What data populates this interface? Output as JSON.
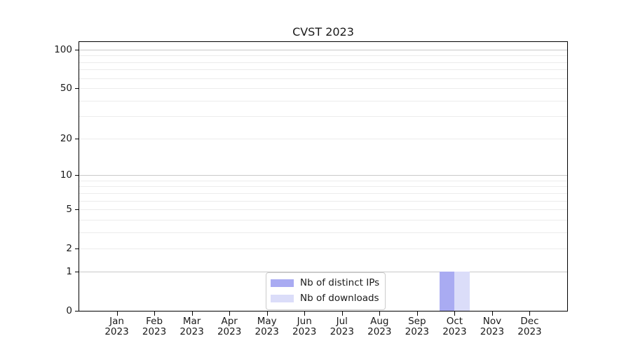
{
  "chart_data": {
    "type": "bar",
    "title": "CVST 2023",
    "xlabel": "",
    "ylabel": "",
    "year": "2023",
    "categories": [
      "Jan",
      "Feb",
      "Mar",
      "Apr",
      "May",
      "Jun",
      "Jul",
      "Aug",
      "Sep",
      "Oct",
      "Nov",
      "Dec"
    ],
    "series": [
      {
        "name": "Nb of distinct IPs",
        "color": "#a9abf2",
        "values": [
          0,
          0,
          0,
          0,
          0,
          0,
          0,
          0,
          0,
          1,
          0,
          0
        ]
      },
      {
        "name": "Nb of downloads",
        "color": "#dbddf9",
        "values": [
          0,
          0,
          0,
          0,
          0,
          0,
          0,
          0,
          0,
          1,
          0,
          0
        ]
      }
    ],
    "y_scale": "log10(1+x)",
    "y_max": 114.5,
    "y_ticks": [
      0,
      1,
      2,
      5,
      10,
      20,
      50,
      100
    ],
    "grid_major": [
      1,
      10,
      100
    ],
    "grid_minor": [
      2,
      3,
      4,
      5,
      6,
      7,
      8,
      9,
      20,
      30,
      40,
      50,
      60,
      70,
      80,
      90
    ],
    "grid_on": true,
    "legend_position": "lower center (inside plot)",
    "colors": {
      "grid_major": "#c8c8c8",
      "grid_minor": "#ececec",
      "spine": "#000000",
      "text": "#1a1a1a",
      "legend_border": "#cccccc",
      "background": "#ffffff"
    }
  }
}
